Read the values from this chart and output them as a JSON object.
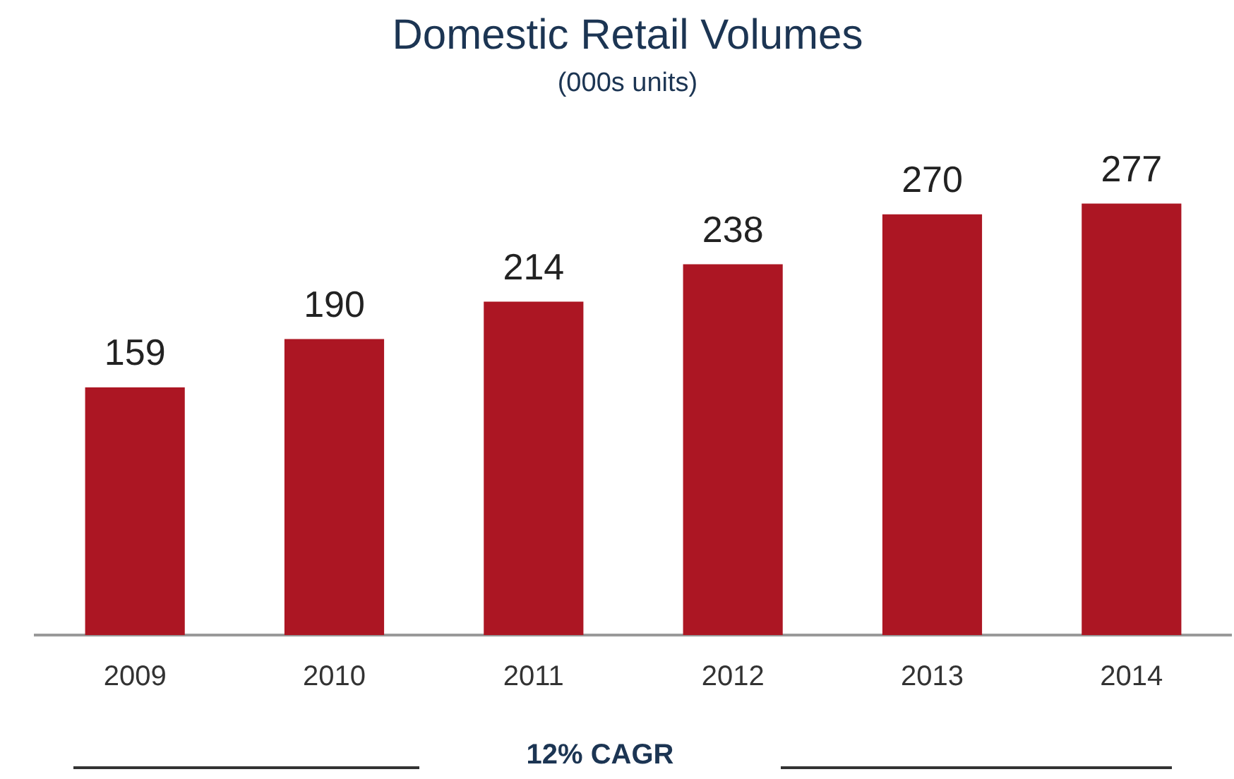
{
  "chart_data": {
    "type": "bar",
    "title": "Domestic Retail Volumes",
    "subtitle": "(000s units)",
    "categories": [
      "2009",
      "2010",
      "2011",
      "2012",
      "2013",
      "2014"
    ],
    "values": [
      159,
      190,
      214,
      238,
      270,
      277
    ],
    "color": "#ac1623",
    "tick_labels": "x",
    "grid": false,
    "legend": false,
    "data_labels": true,
    "annotations": [
      "12% CAGR"
    ]
  }
}
